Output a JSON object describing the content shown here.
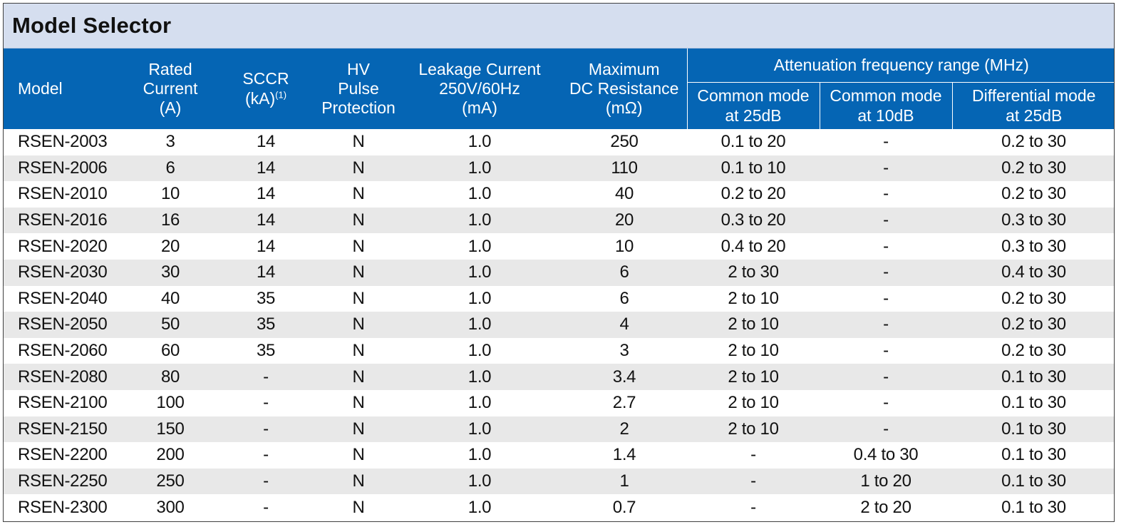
{
  "title": "Model Selector",
  "header": {
    "model": "Model",
    "rated_current": [
      "Rated",
      "Current",
      "(A)"
    ],
    "sccr": [
      "SCCR",
      "(kA)",
      "(1)"
    ],
    "hv_pulse": [
      "HV",
      "Pulse",
      "Protection"
    ],
    "leakage": [
      "Leakage Current",
      "250V/60Hz",
      "(mA)"
    ],
    "dc_resistance": [
      "Maximum",
      "DC Resistance",
      "(mΩ)"
    ],
    "attenuation_group": "Attenuation frequency range (MHz)",
    "common_25": [
      "Common mode",
      "at 25dB"
    ],
    "common_10": [
      "Common mode",
      "at 10dB"
    ],
    "differential_25": [
      "Differential mode",
      "at 25dB"
    ]
  },
  "rows": [
    [
      "RSEN-2003",
      "3",
      "14",
      "N",
      "1.0",
      "250",
      "0.1 to 20",
      "-",
      "0.2 to 30"
    ],
    [
      "RSEN-2006",
      "6",
      "14",
      "N",
      "1.0",
      "110",
      "0.1 to 10",
      "-",
      "0.2 to 30"
    ],
    [
      "RSEN-2010",
      "10",
      "14",
      "N",
      "1.0",
      "40",
      "0.2 to 20",
      "-",
      "0.2 to 30"
    ],
    [
      "RSEN-2016",
      "16",
      "14",
      "N",
      "1.0",
      "20",
      "0.3 to 20",
      "-",
      "0.3 to 30"
    ],
    [
      "RSEN-2020",
      "20",
      "14",
      "N",
      "1.0",
      "10",
      "0.4 to 20",
      "-",
      "0.3 to 30"
    ],
    [
      "RSEN-2030",
      "30",
      "14",
      "N",
      "1.0",
      "6",
      "2 to 30",
      "-",
      "0.4 to 30"
    ],
    [
      "RSEN-2040",
      "40",
      "35",
      "N",
      "1.0",
      "6",
      "2 to 10",
      "-",
      "0.2 to 30"
    ],
    [
      "RSEN-2050",
      "50",
      "35",
      "N",
      "1.0",
      "4",
      "2 to 10",
      "-",
      "0.2 to 30"
    ],
    [
      "RSEN-2060",
      "60",
      "35",
      "N",
      "1.0",
      "3",
      "2 to 10",
      "-",
      "0.2 to 30"
    ],
    [
      "RSEN-2080",
      "80",
      "-",
      "N",
      "1.0",
      "3.4",
      "2 to 10",
      "-",
      "0.1 to 30"
    ],
    [
      "RSEN-2100",
      "100",
      "-",
      "N",
      "1.0",
      "2.7",
      "2 to 10",
      "-",
      "0.1 to 30"
    ],
    [
      "RSEN-2150",
      "150",
      "-",
      "N",
      "1.0",
      "2",
      "2 to 10",
      "-",
      "0.1 to 30"
    ],
    [
      "RSEN-2200",
      "200",
      "-",
      "N",
      "1.0",
      "1.4",
      "-",
      "0.4 to 30",
      "0.1 to 30"
    ],
    [
      "RSEN-2250",
      "250",
      "-",
      "N",
      "1.0",
      "1",
      "-",
      "1 to 20",
      "0.1 to 30"
    ],
    [
      "RSEN-2300",
      "300",
      "-",
      "N",
      "1.0",
      "0.7",
      "-",
      "2 to 20",
      "0.1 to 30"
    ]
  ]
}
